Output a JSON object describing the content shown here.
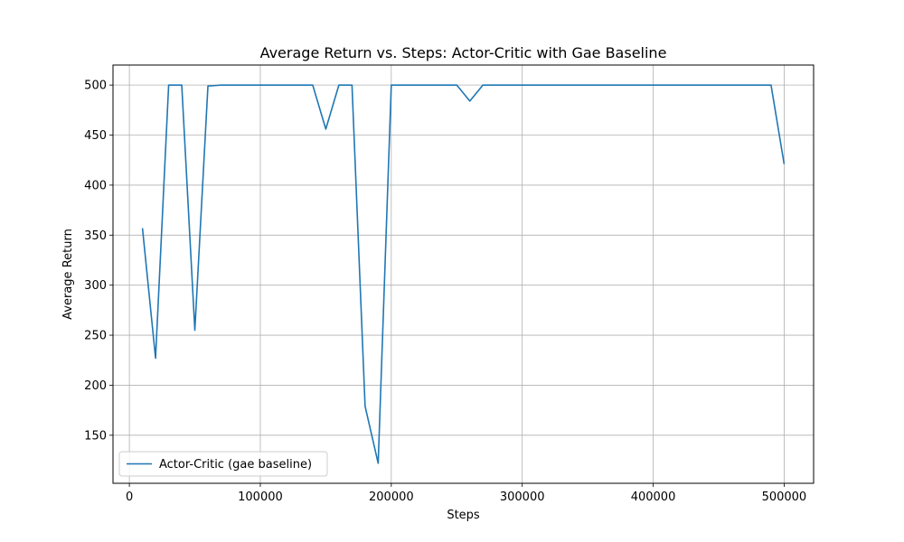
{
  "chart_data": {
    "type": "line",
    "title": "Average Return vs. Steps: Actor-Critic with Gae Baseline",
    "xlabel": "Steps",
    "ylabel": "Average Return",
    "xlim": [
      -12500,
      522500
    ],
    "ylim": [
      102,
      520
    ],
    "x_ticks": [
      0,
      100000,
      200000,
      300000,
      400000,
      500000
    ],
    "y_ticks": [
      150,
      200,
      250,
      300,
      350,
      400,
      450,
      500
    ],
    "grid": true,
    "legend_position": "lower-left",
    "series": [
      {
        "name": "Actor-Critic (gae baseline)",
        "color": "#1f77b4",
        "x": [
          10000,
          20000,
          30000,
          40000,
          50000,
          60000,
          70000,
          80000,
          90000,
          100000,
          110000,
          120000,
          130000,
          140000,
          150000,
          160000,
          170000,
          180000,
          190000,
          200000,
          210000,
          220000,
          230000,
          240000,
          250000,
          260000,
          270000,
          280000,
          290000,
          300000,
          310000,
          320000,
          330000,
          340000,
          350000,
          360000,
          370000,
          380000,
          390000,
          400000,
          410000,
          420000,
          430000,
          440000,
          450000,
          460000,
          470000,
          480000,
          490000,
          500000
        ],
        "y": [
          357,
          227,
          500,
          500,
          255,
          499,
          500,
          500,
          500,
          500,
          500,
          500,
          500,
          500,
          456,
          500,
          500,
          179,
          122,
          500,
          500,
          500,
          500,
          500,
          500,
          484,
          500,
          500,
          500,
          500,
          500,
          500,
          500,
          500,
          500,
          500,
          500,
          500,
          500,
          500,
          500,
          500,
          500,
          500,
          500,
          500,
          500,
          500,
          500,
          421
        ]
      }
    ]
  }
}
